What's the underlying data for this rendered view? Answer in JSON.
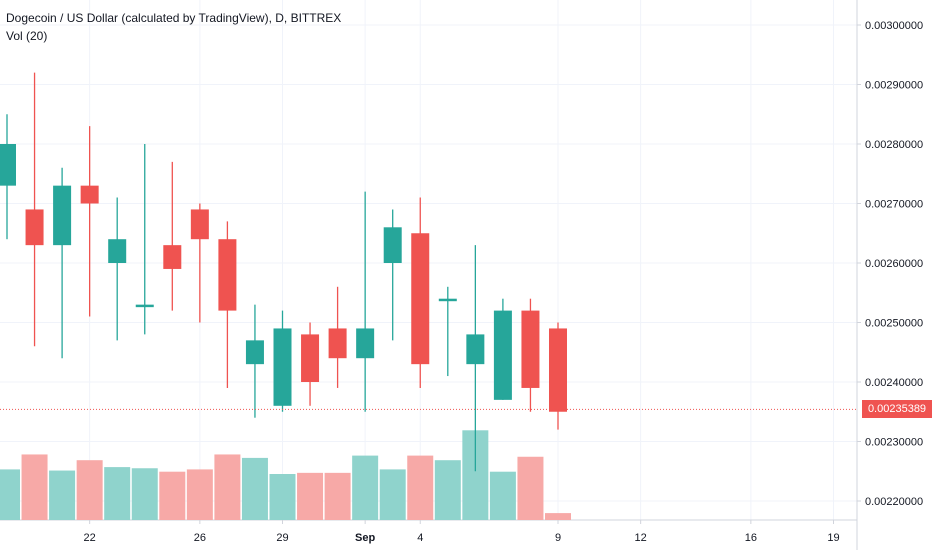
{
  "chart_title": "Dogecoin / US Dollar (calculated by TradingView), D, BITTREX",
  "volume_indicator": "Vol (20)",
  "current_price_label": "0.00235389",
  "colors": {
    "up": "#26a69a",
    "down": "#ef5350",
    "up_volume": "#8fd3cc",
    "down_volume": "#f7a9a7",
    "grid": "#f0f3fa",
    "axis": "#d1d4dc",
    "price_line": "#ef5350"
  },
  "chart_data": {
    "type": "candlestick",
    "title": "Dogecoin / US Dollar (calculated by TradingView), D, BITTREX",
    "y_axis_labels": [
      "0.00300000",
      "0.00290000",
      "0.00280000",
      "0.00270000",
      "0.00260000",
      "0.00250000",
      "0.00240000",
      "0.00230000",
      "0.00220000"
    ],
    "x_axis_labels": [
      "22",
      "26",
      "29",
      "Sep",
      "4",
      "9",
      "12",
      "16",
      "19"
    ],
    "ylim": [
      0.00218,
      0.00305
    ],
    "current_price": 0.00235389,
    "grid": true,
    "candles": [
      {
        "day": 19,
        "open": 0.00273,
        "close": 0.0028,
        "high": 0.00285,
        "low": 0.00264,
        "volume": 2.2
      },
      {
        "day": 20,
        "open": 0.00269,
        "close": 0.00263,
        "high": 0.00292,
        "low": 0.00246,
        "volume": 2.85
      },
      {
        "day": 21,
        "open": 0.00263,
        "close": 0.00273,
        "high": 0.00276,
        "low": 0.00244,
        "volume": 2.15
      },
      {
        "day": 22,
        "open": 0.00273,
        "close": 0.0027,
        "high": 0.00283,
        "low": 0.00251,
        "volume": 2.6
      },
      {
        "day": 23,
        "open": 0.0026,
        "close": 0.00264,
        "high": 0.00271,
        "low": 0.00247,
        "volume": 2.3
      },
      {
        "day": 24,
        "open": 0.00253,
        "close": 0.00253,
        "high": 0.0028,
        "low": 0.00248,
        "volume": 2.25
      },
      {
        "day": 25,
        "open": 0.00263,
        "close": 0.00259,
        "high": 0.00277,
        "low": 0.00252,
        "volume": 2.1
      },
      {
        "day": 26,
        "open": 0.00269,
        "close": 0.00264,
        "high": 0.0027,
        "low": 0.0025,
        "volume": 2.2
      },
      {
        "day": 27,
        "open": 0.00264,
        "close": 0.00252,
        "high": 0.00267,
        "low": 0.00239,
        "volume": 2.85
      },
      {
        "day": 28,
        "open": 0.00243,
        "close": 0.00247,
        "high": 0.00253,
        "low": 0.00234,
        "volume": 2.7
      },
      {
        "day": 29,
        "open": 0.00236,
        "close": 0.00249,
        "high": 0.00252,
        "low": 0.00235,
        "volume": 2.0
      },
      {
        "day": 30,
        "open": 0.00248,
        "close": 0.0024,
        "high": 0.0025,
        "low": 0.00236,
        "volume": 2.05
      },
      {
        "day": 31,
        "open": 0.00249,
        "close": 0.00244,
        "high": 0.00256,
        "low": 0.00239,
        "volume": 2.05
      },
      {
        "day": 32,
        "open": 0.00244,
        "close": 0.00249,
        "high": 0.00272,
        "low": 0.00235,
        "volume": 2.8
      },
      {
        "day": 33,
        "open": 0.0026,
        "close": 0.00266,
        "high": 0.00269,
        "low": 0.00247,
        "volume": 2.2
      },
      {
        "day": 34,
        "open": 0.00265,
        "close": 0.00243,
        "high": 0.00271,
        "low": 0.00239,
        "volume": 2.8
      },
      {
        "day": 35,
        "open": 0.00254,
        "close": 0.00254,
        "high": 0.00256,
        "low": 0.00241,
        "volume": 2.6
      },
      {
        "day": 36,
        "open": 0.00243,
        "close": 0.00248,
        "high": 0.00263,
        "low": 0.00225,
        "volume": 3.9
      },
      {
        "day": 37,
        "open": 0.00237,
        "close": 0.00252,
        "high": 0.00254,
        "low": 0.00237,
        "volume": 2.1
      },
      {
        "day": 38,
        "open": 0.00252,
        "close": 0.00239,
        "high": 0.00254,
        "low": 0.00235,
        "volume": 2.75
      },
      {
        "day": 39,
        "open": 0.00249,
        "close": 0.00235,
        "high": 0.0025,
        "low": 0.00232,
        "volume": 0.3
      }
    ]
  }
}
